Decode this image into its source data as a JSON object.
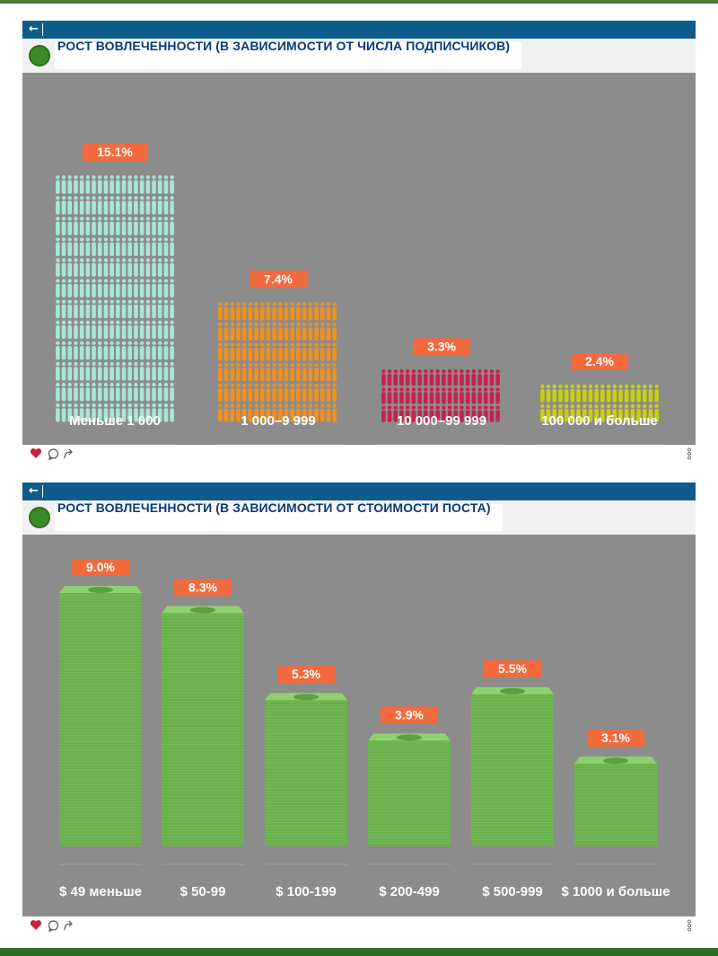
{
  "panels": [
    {
      "title": "РОСТ ВОВЛЕЧЕННОСТИ (В ЗАВИСИМОСТИ ОТ ЧИСЛА ПОДПИСЧИКОВ)"
    },
    {
      "title": "РОСТ ВОВЛЕЧЕННОСТИ (В ЗАВИСИМОСТИ ОТ СТОИМОСТИ ПОСТА)"
    }
  ],
  "icons": {
    "back": "arrow-left-icon",
    "like": "heart-icon",
    "comment": "comment-icon",
    "share": "share-icon",
    "more": "more-icon"
  },
  "colors": {
    "topbar": "#0f5c8c",
    "title": "#0b3a7a",
    "chart_bg": "#8c8c8c",
    "label_bg": "#f26a3d",
    "heart": "#c4243d",
    "money": "#6ab04c",
    "people": [
      "#a8e6d8",
      "#f4901c",
      "#c8204e",
      "#c9d10f"
    ]
  },
  "chart_data": [
    {
      "type": "bar",
      "title": "РОСТ ВОВЛЕЧЕННОСТИ (В ЗАВИСИМОСТИ ОТ ЧИСЛА ПОДПИСЧИКОВ)",
      "categories": [
        "Меньше 1 000",
        "1 000–9 999",
        "10 000–99 999",
        "100 000 и больше"
      ],
      "values": [
        15.1,
        7.4,
        3.3,
        2.4
      ],
      "value_labels": [
        "15.1%",
        "7.4%",
        "3.3%",
        "2.4%"
      ],
      "unit": "%",
      "ylim": [
        0,
        15.1
      ],
      "grid": false,
      "legend": "none"
    },
    {
      "type": "bar",
      "title": "РОСТ ВОВЛЕЧЕННОСТИ (В ЗАВИСИМОСТИ ОТ СТОИМОСТИ ПОСТА)",
      "categories": [
        "$ 49  меньше",
        "$ 50-99",
        "$ 100-199",
        "$ 200-499",
        "$ 500-999",
        "$ 1000 и больше"
      ],
      "values": [
        9.0,
        8.3,
        5.3,
        3.9,
        5.5,
        3.1
      ],
      "value_labels": [
        "9.0%",
        "8.3%",
        "5.3%",
        "3.9%",
        "5.5%",
        "3.1%"
      ],
      "unit": "%",
      "ylim": [
        0,
        9.0
      ],
      "grid": false,
      "legend": "none"
    }
  ]
}
